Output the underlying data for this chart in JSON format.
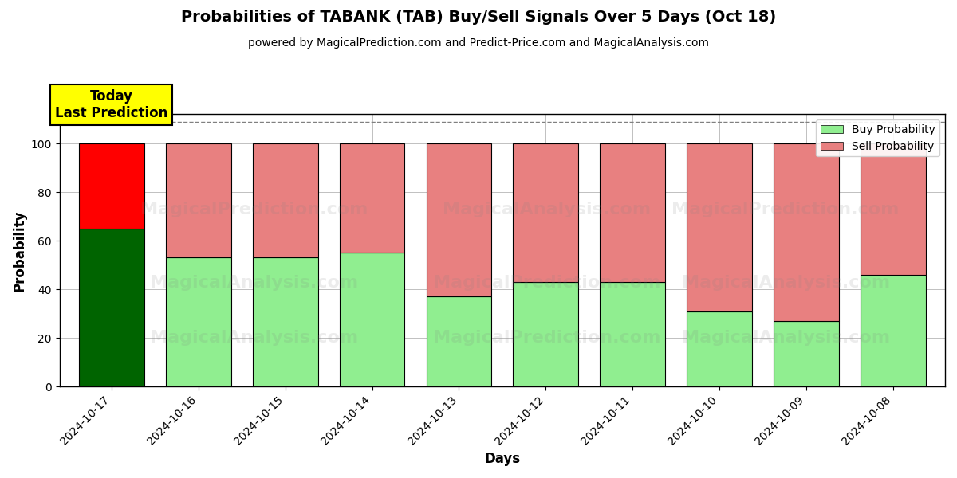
{
  "title": "Probabilities of TABANK (TAB) Buy/Sell Signals Over 5 Days (Oct 18)",
  "subtitle": "powered by MagicalPrediction.com and Predict-Price.com and MagicalAnalysis.com",
  "dates": [
    "2024-10-17",
    "2024-10-16",
    "2024-10-15",
    "2024-10-14",
    "2024-10-13",
    "2024-10-12",
    "2024-10-11",
    "2024-10-10",
    "2024-10-09",
    "2024-10-08"
  ],
  "buy_values": [
    65,
    53,
    53,
    55,
    37,
    43,
    43,
    31,
    27,
    46
  ],
  "sell_values": [
    35,
    47,
    47,
    45,
    63,
    57,
    57,
    69,
    73,
    54
  ],
  "today_buy_color": "#006400",
  "today_sell_color": "#FF0000",
  "buy_color": "#90EE90",
  "sell_color": "#E88080",
  "today_label_bg": "#FFFF00",
  "today_label_text": "Today\nLast Prediction",
  "xlabel": "Days",
  "ylabel": "Probability",
  "ylim": [
    0,
    112
  ],
  "yticks": [
    0,
    20,
    40,
    60,
    80,
    100
  ],
  "dashed_line_y": 109,
  "wm1_texts": [
    "MagicalAnalysis.com",
    "MagicalPrediction.com"
  ],
  "wm2_texts": [
    "MagicalAnalysis.com",
    "MagicalPrediction.com"
  ],
  "legend_buy_label": "Buy Probability",
  "legend_sell_label": "Sell Probability",
  "bar_width": 0.75,
  "figsize": [
    12.0,
    6.0
  ],
  "dpi": 100
}
